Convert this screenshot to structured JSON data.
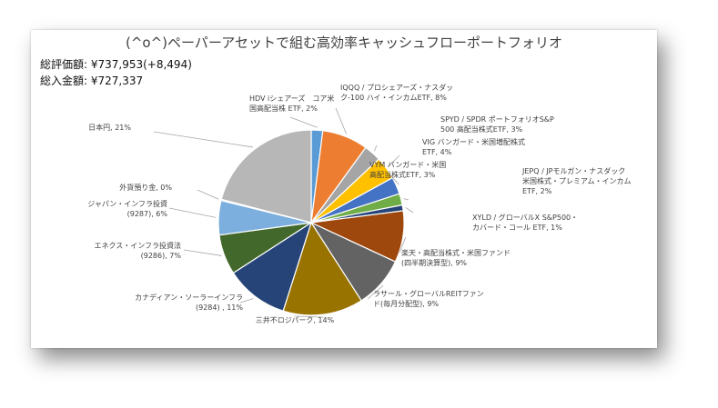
{
  "chart_data": {
    "type": "pie",
    "title": "(^o^)ペーパーアセットで組む高効率キャッシュフローポートフォリオ",
    "summary": {
      "total_valuation": "総評価額: ¥737,953(+8,494)",
      "total_invested": "総入金額: ¥727,337"
    },
    "slices": [
      {
        "lines": [
          "HDV iシェアーズ　コア米",
          "国高配当株 ETF, 2%"
        ],
        "value": 2,
        "color": "#5b9bd5"
      },
      {
        "lines": [
          "IQQQ / プロシェアーズ・ナスダッ",
          "ク-100 ハイ・インカムETF, 8%"
        ],
        "value": 8,
        "color": "#ed7d31"
      },
      {
        "lines": [
          "SPYD / SPDR ポートフォリオS&P",
          "500 高配当株式ETF, 3%"
        ],
        "value": 3,
        "color": "#a5a5a5"
      },
      {
        "lines": [
          "VIG バンガード・米国増配株式",
          "ETF, 4%"
        ],
        "value": 4,
        "color": "#ffc000"
      },
      {
        "lines": [
          "VYM バンガード・米国",
          "高配当株式ETF, 3%"
        ],
        "value": 3,
        "color": "#4472c4"
      },
      {
        "lines": [
          "JEPQ / JPモルガン・ナスダック",
          "米国株式・プレミアム・インカム",
          "ETF, 2%"
        ],
        "value": 2,
        "color": "#70ad47"
      },
      {
        "lines": [
          "XYLD / グローバルX S&P500・",
          "カバード・コール ETF, 1%"
        ],
        "value": 1,
        "color": "#264478"
      },
      {
        "lines": [
          "楽天・高配当株式・米国ファンド",
          "(四半期決算型), 9%"
        ],
        "value": 9,
        "color": "#9e480e"
      },
      {
        "lines": [
          "ラサール・グローバルREITファン",
          "ド(毎月分配型), 9%"
        ],
        "value": 9,
        "color": "#636363"
      },
      {
        "lines": [
          "三井不ロジパーク, 14%"
        ],
        "value": 14,
        "color": "#997300"
      },
      {
        "lines": [
          "カナディアン・ソーラーインフラ",
          "(9284) , 11%"
        ],
        "value": 11,
        "color": "#264478"
      },
      {
        "lines": [
          "エネクス・インフラ投資法",
          "(9286), 7%"
        ],
        "value": 7,
        "color": "#43682b"
      },
      {
        "lines": [
          "ジャパン・インフラ投資",
          "(9287), 6%"
        ],
        "value": 6,
        "color": "#7cafdd"
      },
      {
        "lines": [
          "外貨預り金, 0%"
        ],
        "value": 0.2,
        "color": "#f1975a"
      },
      {
        "lines": [
          "日本円, 21%"
        ],
        "value": 21,
        "color": "#b7b7b7"
      }
    ]
  }
}
